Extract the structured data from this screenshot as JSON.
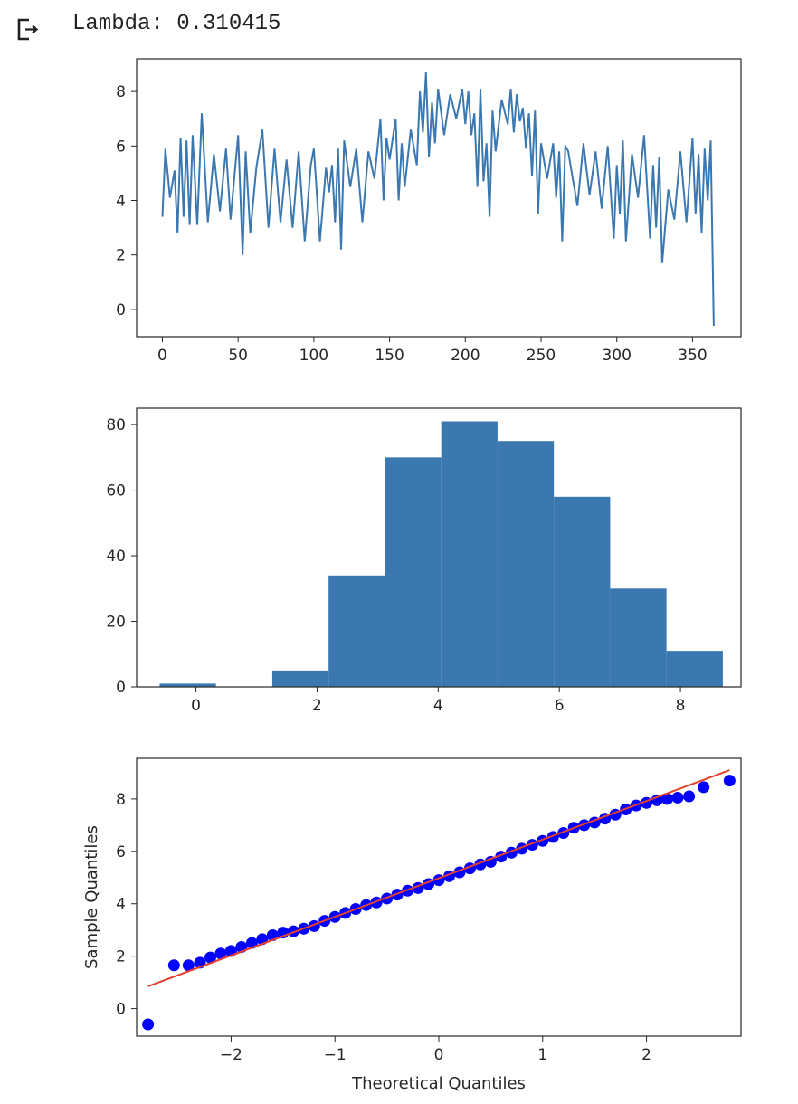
{
  "output": {
    "text": "Lambda: 0.310415",
    "icon": "output-arrow-icon"
  },
  "chart_data": [
    {
      "type": "line",
      "title": "",
      "xlabel": "",
      "ylabel": "",
      "xlim": [
        -17,
        382
      ],
      "ylim": [
        -1,
        9.2
      ],
      "xticks": [
        0,
        50,
        100,
        150,
        200,
        250,
        300,
        350
      ],
      "yticks": [
        0,
        2,
        4,
        6,
        8
      ],
      "grid": false,
      "color": "#3b78b0",
      "series": [
        {
          "x": [
            0,
            2,
            5,
            8,
            10,
            12,
            14,
            16,
            18,
            20,
            23,
            26,
            30,
            34,
            38,
            42,
            45,
            50,
            53,
            55,
            58,
            62,
            66,
            70,
            74,
            78,
            82,
            86,
            90,
            94,
            98,
            100,
            104,
            108,
            110,
            112,
            114,
            116,
            118,
            120,
            124,
            128,
            132,
            136,
            140,
            144,
            146,
            148,
            150,
            154,
            156,
            158,
            160,
            164,
            168,
            170,
            172,
            174,
            176,
            178,
            180,
            182,
            186,
            190,
            194,
            198,
            200,
            202,
            204,
            206,
            208,
            210,
            212,
            214,
            216,
            218,
            220,
            224,
            228,
            230,
            232,
            234,
            236,
            238,
            240,
            242,
            244,
            246,
            248,
            250,
            254,
            258,
            260,
            262,
            264,
            266,
            268,
            270,
            274,
            278,
            282,
            286,
            290,
            294,
            298,
            300,
            302,
            304,
            306,
            310,
            314,
            318,
            322,
            324,
            326,
            328,
            330,
            334,
            338,
            342,
            346,
            350,
            352,
            354,
            356,
            358,
            360,
            362,
            364
          ],
          "y": [
            3.4,
            5.9,
            4.1,
            5.1,
            2.8,
            6.3,
            3.4,
            6.2,
            3.1,
            6.4,
            3.1,
            7.2,
            3.2,
            5.7,
            3.6,
            5.9,
            3.3,
            6.4,
            2.0,
            5.8,
            2.8,
            5.2,
            6.6,
            3.0,
            5.9,
            3.2,
            5.5,
            3.0,
            5.8,
            2.5,
            5.3,
            5.9,
            2.5,
            5.2,
            4.3,
            5.3,
            3.2,
            5.9,
            2.2,
            6.2,
            4.5,
            5.9,
            3.2,
            5.8,
            4.8,
            7.0,
            4.0,
            6.3,
            5.5,
            7.0,
            4.0,
            6.1,
            4.5,
            6.6,
            5.3,
            8.0,
            6.5,
            8.7,
            5.6,
            7.6,
            6.1,
            8.1,
            6.4,
            7.9,
            7.0,
            8.1,
            6.8,
            8.0,
            6.4,
            7.2,
            4.5,
            8.1,
            4.7,
            6.1,
            3.4,
            7.3,
            5.8,
            7.7,
            6.8,
            8.1,
            6.5,
            7.9,
            6.9,
            7.4,
            5.9,
            7.2,
            4.9,
            7.3,
            3.5,
            6.1,
            4.8,
            6.1,
            4.1,
            5.8,
            2.5,
            6.0,
            5.8,
            5.1,
            3.8,
            6.1,
            4.2,
            5.8,
            3.7,
            6.0,
            2.6,
            5.3,
            3.5,
            6.2,
            2.5,
            5.7,
            4.1,
            6.4,
            2.6,
            5.3,
            3.0,
            5.6,
            1.7,
            4.4,
            3.3,
            5.8,
            3.2,
            6.3,
            3.5,
            5.7,
            2.8,
            5.9,
            4.0,
            6.2,
            -0.6
          ]
        }
      ]
    },
    {
      "type": "bar",
      "subtype": "histogram",
      "title": "",
      "xlabel": "",
      "ylabel": "",
      "xlim": [
        -0.98,
        9.0
      ],
      "ylim": [
        0,
        85
      ],
      "xticks": [
        0,
        2,
        4,
        6,
        8
      ],
      "yticks": [
        0,
        20,
        40,
        60,
        80
      ],
      "grid": false,
      "color": "#3b78b0",
      "bin_edges": [
        -0.6,
        0.33,
        1.26,
        2.19,
        3.12,
        4.05,
        4.98,
        5.91,
        6.84,
        7.77,
        8.7
      ],
      "values": [
        1,
        0,
        5,
        34,
        70,
        81,
        75,
        58,
        30,
        11
      ]
    },
    {
      "type": "scatter",
      "title": "",
      "xlabel": "Theoretical Quantiles",
      "ylabel": "Sample Quantiles",
      "xlim": [
        -2.91,
        2.91
      ],
      "ylim": [
        -1.05,
        9.55
      ],
      "xticks": [
        -2,
        -1,
        0,
        1,
        2
      ],
      "xtick_labels": [
        "−2",
        "−1",
        "0",
        "1",
        "2"
      ],
      "yticks": [
        0,
        2,
        4,
        6,
        8
      ],
      "grid": false,
      "point_color": "#0000ff",
      "line_color": "#e5402e",
      "reference_line": {
        "x": [
          -2.8,
          2.8
        ],
        "y": [
          0.85,
          9.1
        ]
      },
      "points": {
        "x": [
          -2.8,
          -2.55,
          -2.41,
          -2.3,
          -2.2,
          -2.1,
          -2.0,
          -1.9,
          -1.8,
          -1.7,
          -1.6,
          -1.5,
          -1.4,
          -1.3,
          -1.2,
          -1.1,
          -1.0,
          -0.9,
          -0.8,
          -0.7,
          -0.6,
          -0.5,
          -0.4,
          -0.3,
          -0.2,
          -0.1,
          0.0,
          0.1,
          0.2,
          0.3,
          0.4,
          0.5,
          0.6,
          0.7,
          0.8,
          0.9,
          1.0,
          1.1,
          1.2,
          1.3,
          1.4,
          1.5,
          1.6,
          1.7,
          1.8,
          1.9,
          2.0,
          2.1,
          2.2,
          2.3,
          2.41,
          2.55,
          2.8
        ],
        "y": [
          -0.6,
          1.65,
          1.65,
          1.75,
          1.95,
          2.1,
          2.2,
          2.35,
          2.5,
          2.65,
          2.8,
          2.9,
          2.95,
          3.05,
          3.15,
          3.35,
          3.5,
          3.65,
          3.8,
          3.95,
          4.05,
          4.2,
          4.35,
          4.5,
          4.6,
          4.75,
          4.9,
          5.05,
          5.2,
          5.35,
          5.5,
          5.6,
          5.8,
          5.95,
          6.1,
          6.25,
          6.4,
          6.55,
          6.7,
          6.9,
          7.0,
          7.1,
          7.25,
          7.4,
          7.6,
          7.75,
          7.85,
          7.95,
          8.0,
          8.05,
          8.1,
          8.45,
          8.7
        ]
      }
    }
  ]
}
